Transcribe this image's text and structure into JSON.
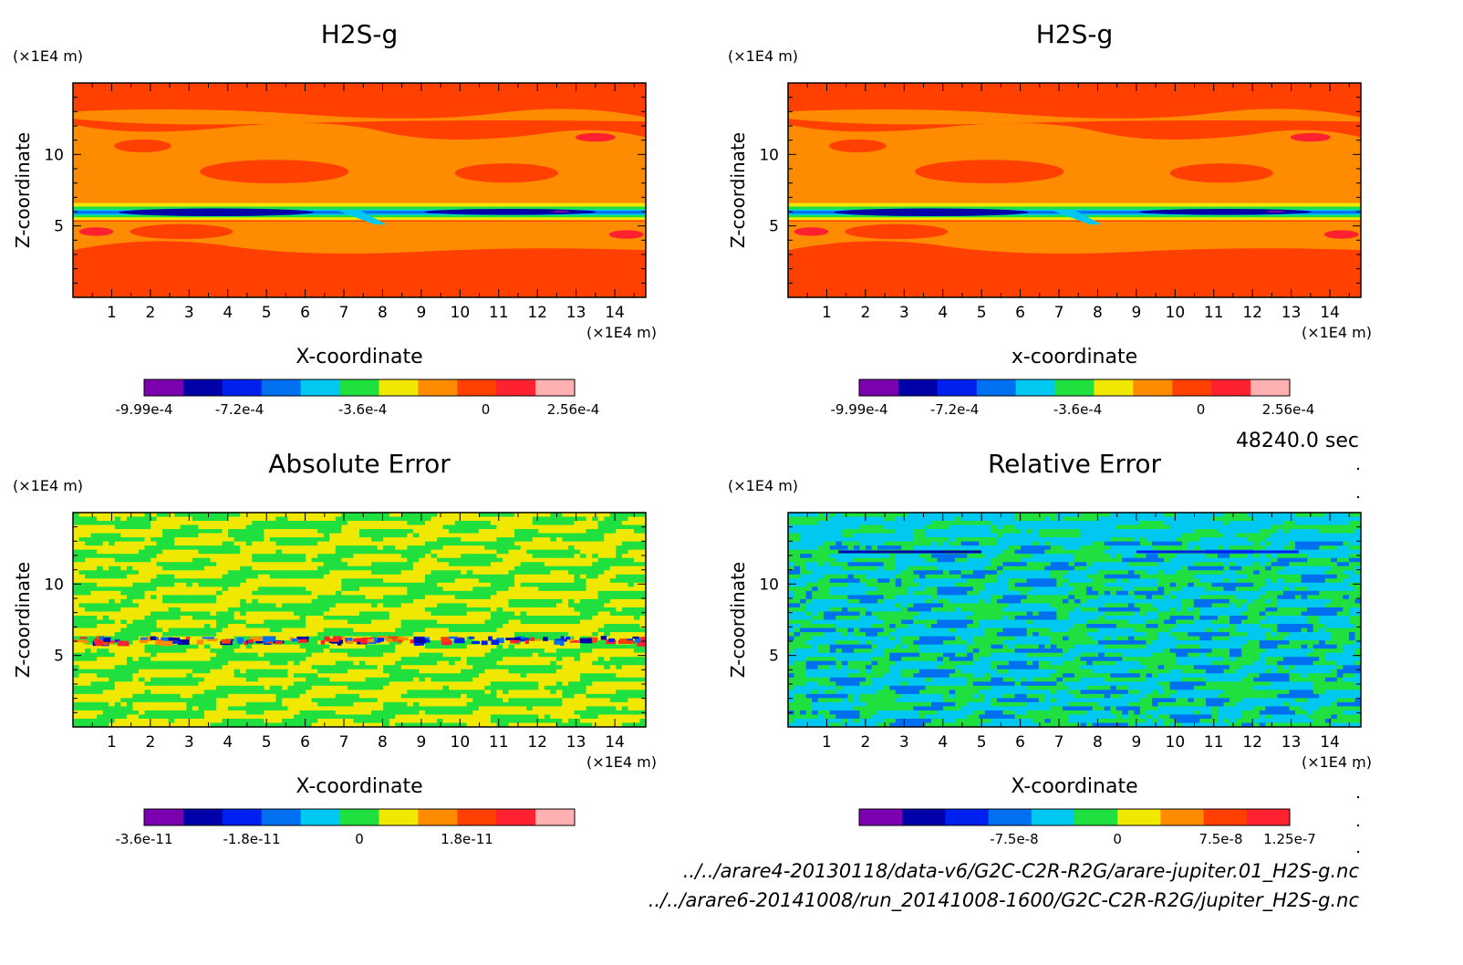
{
  "chart_data": [
    {
      "type": "heatmap",
      "title": "H2S-g",
      "xlabel": "X-coordinate",
      "ylabel": "Z-coordinate",
      "x_unit": "(×1E4 m)",
      "y_unit": "(×1E4 m)",
      "xlim": [
        0,
        14.8
      ],
      "ylim": [
        0,
        15
      ],
      "x_ticks": [
        "1",
        "2",
        "3",
        "4",
        "5",
        "6",
        "7",
        "8",
        "9",
        "10",
        "11",
        "12",
        "13",
        "14"
      ],
      "y_ticks": [
        "5",
        "10"
      ],
      "colorbar": {
        "colors": [
          "#7b00b0",
          "#0000a8",
          "#0020f0",
          "#0070f0",
          "#00c8f0",
          "#20e040",
          "#f0e800",
          "#ff8c00",
          "#ff4000",
          "#ff2030",
          "#ffb0b0"
        ],
        "tick_labels": [
          "-9.99e-4",
          "-7.2e-4",
          "-3.6e-4",
          "0",
          "2.56e-4"
        ],
        "tick_values": [
          -0.000999,
          -0.00072,
          -0.00036,
          0,
          0.000256
        ],
        "range": [
          -0.000999,
          0.00026
        ]
      },
      "pattern": "field"
    },
    {
      "type": "heatmap",
      "title": "H2S-g",
      "xlabel": "x-coordinate",
      "ylabel": "Z-coordinate",
      "x_unit": "(×1E4 m)",
      "y_unit": "(×1E4 m)",
      "xlim": [
        0,
        14.8
      ],
      "ylim": [
        0,
        15
      ],
      "x_ticks": [
        "1",
        "2",
        "3",
        "4",
        "5",
        "6",
        "7",
        "8",
        "9",
        "10",
        "11",
        "12",
        "13",
        "14"
      ],
      "y_ticks": [
        "5",
        "10"
      ],
      "colorbar": {
        "colors": [
          "#7b00b0",
          "#0000a8",
          "#0020f0",
          "#0070f0",
          "#00c8f0",
          "#20e040",
          "#f0e800",
          "#ff8c00",
          "#ff4000",
          "#ff2030",
          "#ffb0b0"
        ],
        "tick_labels": [
          "-9.99e-4",
          "-7.2e-4",
          "-3.6e-4",
          "0",
          "2.56e-4"
        ],
        "tick_values": [
          -0.000999,
          -0.00072,
          -0.00036,
          0,
          0.000256
        ],
        "range": [
          -0.000999,
          0.00026
        ]
      },
      "pattern": "field"
    },
    {
      "type": "heatmap",
      "title": "Absolute Error",
      "xlabel": "X-coordinate",
      "ylabel": "Z-coordinate",
      "x_unit": "(×1E4 m)",
      "y_unit": "(×1E4 m)",
      "xlim": [
        0,
        14.8
      ],
      "ylim": [
        0,
        15
      ],
      "x_ticks": [
        "1",
        "2",
        "3",
        "4",
        "5",
        "6",
        "7",
        "8",
        "9",
        "10",
        "11",
        "12",
        "13",
        "14"
      ],
      "y_ticks": [
        "5",
        "10"
      ],
      "colorbar": {
        "colors": [
          "#7b00b0",
          "#0000a8",
          "#0020f0",
          "#0070f0",
          "#00c8f0",
          "#20e040",
          "#f0e800",
          "#ff8c00",
          "#ff4000",
          "#ff2030",
          "#ffb0b0"
        ],
        "tick_labels": [
          "-3.6e-11",
          "-1.8e-11",
          "0",
          "1.8e-11"
        ],
        "tick_values": [
          -3.6e-11,
          -1.8e-11,
          0,
          1.8e-11
        ],
        "range": [
          -3.6e-11,
          3.6e-11
        ]
      },
      "pattern": "abs_noise"
    },
    {
      "type": "heatmap",
      "title": "Relative Error",
      "xlabel": "X-coordinate",
      "ylabel": "Z-coordinate",
      "x_unit": "(×1E4 m)",
      "y_unit": "(×1E4 m)",
      "xlim": [
        0,
        14.8
      ],
      "ylim": [
        0,
        15
      ],
      "x_ticks": [
        "1",
        "2",
        "3",
        "4",
        "5",
        "6",
        "7",
        "8",
        "9",
        "10",
        "11",
        "12",
        "13",
        "14"
      ],
      "y_ticks": [
        "5",
        "10"
      ],
      "colorbar": {
        "colors": [
          "#7b00b0",
          "#0000a8",
          "#0020f0",
          "#0070f0",
          "#00c8f0",
          "#20e040",
          "#f0e800",
          "#ff8c00",
          "#ff4000",
          "#ff2030"
        ],
        "tick_labels": [
          "-7.5e-8",
          "0",
          "7.5e-8",
          "1.25e-7"
        ],
        "tick_values": [
          -7.5e-08,
          0,
          7.5e-08,
          1.25e-07
        ],
        "range": [
          -1.875e-07,
          1.25e-07
        ]
      },
      "pattern": "rel_noise"
    }
  ],
  "footer": {
    "time": "48240.0 sec",
    "file1": "../../arare4-20130118/data-v6/G2C-C2R-R2G/arare-jupiter.01_H2S-g.nc",
    "file2": "../../arare6-20141008/run_20141008-1600/G2C-C2R-R2G/jupiter_H2S-g.nc"
  }
}
